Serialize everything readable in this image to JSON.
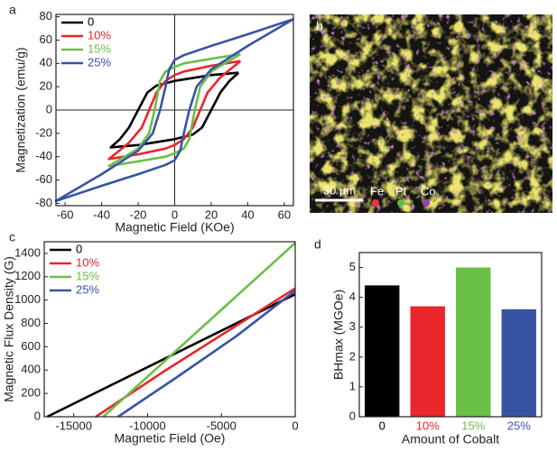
{
  "chart_data": [
    {
      "type": "line",
      "panel_label": "a",
      "xlabel": "Magnetic Field (KOe)",
      "ylabel": "Magnetization (emu/g)",
      "xlim": [
        -65,
        65
      ],
      "ylim": [
        -82,
        82
      ],
      "xticks": [
        -60,
        -40,
        -20,
        0,
        20,
        40,
        60
      ],
      "yticks": [
        -80,
        -60,
        -40,
        -20,
        0,
        20,
        40,
        60,
        80
      ],
      "zero_lines": true,
      "legend": "upper left",
      "series": [
        {
          "name": "0",
          "color": "#000000",
          "x": [
            35,
            20,
            0,
            -10,
            -15,
            -20,
            -25,
            -30,
            -35,
            -20,
            0,
            10,
            15,
            20,
            25,
            30,
            35
          ],
          "values": [
            32,
            30,
            25,
            21,
            15,
            0,
            -15,
            -25,
            -32,
            -30,
            -25,
            -21,
            -15,
            0,
            15,
            25,
            32
          ]
        },
        {
          "name": "10%",
          "color": "#e8262b",
          "x": [
            36,
            20,
            5,
            0,
            -5,
            -10,
            -14,
            -18,
            -25,
            -36,
            -20,
            -5,
            0,
            5,
            10,
            14,
            18,
            25,
            36
          ],
          "values": [
            42,
            38,
            33,
            30,
            25,
            15,
            0,
            -15,
            -28,
            -42,
            -38,
            -33,
            -30,
            -25,
            -15,
            0,
            15,
            28,
            42
          ]
        },
        {
          "name": "15%",
          "color": "#6abf45",
          "x": [
            36,
            20,
            5,
            0,
            -5,
            -8,
            -11,
            -14,
            -20,
            -36,
            -20,
            -5,
            0,
            5,
            8,
            11,
            14,
            20,
            36
          ],
          "values": [
            48,
            44,
            40,
            37,
            33,
            25,
            0,
            -20,
            -33,
            -48,
            -44,
            -40,
            -37,
            -33,
            -25,
            0,
            20,
            33,
            48
          ]
        },
        {
          "name": "25%",
          "color": "#3953a4",
          "x": [
            65,
            40,
            20,
            5,
            0,
            -3,
            -5,
            -8,
            -12,
            -20,
            -40,
            -65,
            -40,
            -20,
            -5,
            0,
            3,
            5,
            8,
            12,
            20,
            40,
            65
          ],
          "values": [
            78,
            65,
            55,
            47,
            43,
            35,
            20,
            0,
            -20,
            -35,
            -55,
            -78,
            -65,
            -55,
            -47,
            -43,
            -35,
            -20,
            0,
            20,
            35,
            55,
            78
          ]
        }
      ]
    },
    {
      "type": "line",
      "panel_label": "c",
      "xlabel": "Magnetic Field (Oe)",
      "ylabel": "Magnetic Flux Density (G)",
      "xlim": [
        -17000,
        0
      ],
      "ylim": [
        0,
        1500
      ],
      "xticks": [
        -15000,
        -10000,
        -5000,
        0
      ],
      "yticks": [
        0,
        200,
        400,
        600,
        800,
        1000,
        1200,
        1400
      ],
      "zero_lines": false,
      "legend": "upper left",
      "series": [
        {
          "name": "0",
          "color": "#000000",
          "x": [
            -16800,
            0
          ],
          "values": [
            0,
            1050
          ]
        },
        {
          "name": "10%",
          "color": "#e8262b",
          "x": [
            -13500,
            -9000,
            -5000,
            0
          ],
          "values": [
            0,
            380,
            700,
            1100
          ]
        },
        {
          "name": "15%",
          "color": "#6abf45",
          "x": [
            -13000,
            0
          ],
          "values": [
            0,
            1490
          ]
        },
        {
          "name": "25%",
          "color": "#3953a4",
          "x": [
            -12000,
            -8000,
            -4000,
            0
          ],
          "values": [
            0,
            340,
            690,
            1080
          ]
        }
      ]
    },
    {
      "type": "bar",
      "panel_label": "d",
      "xlabel": "Amount of Cobalt",
      "ylabel": "BHmax (MGOe)",
      "categories": [
        "0",
        "10%",
        "15%",
        "25%"
      ],
      "values": [
        4.4,
        3.7,
        5.0,
        3.6
      ],
      "colors": [
        "#000000",
        "#e8262b",
        "#6abf45",
        "#3953a4"
      ],
      "ylim": [
        0,
        5.5
      ],
      "yticks": [
        0,
        1,
        2,
        3,
        4,
        5
      ]
    }
  ],
  "image_panel": {
    "panel_label": "b",
    "scale_bar": "30 µm",
    "elements": [
      {
        "name": "Fe",
        "color": "#e53935"
      },
      {
        "name": "Pt",
        "color": "#5cb85c"
      },
      {
        "name": "Co",
        "color": "#9b3fb5"
      }
    ]
  }
}
